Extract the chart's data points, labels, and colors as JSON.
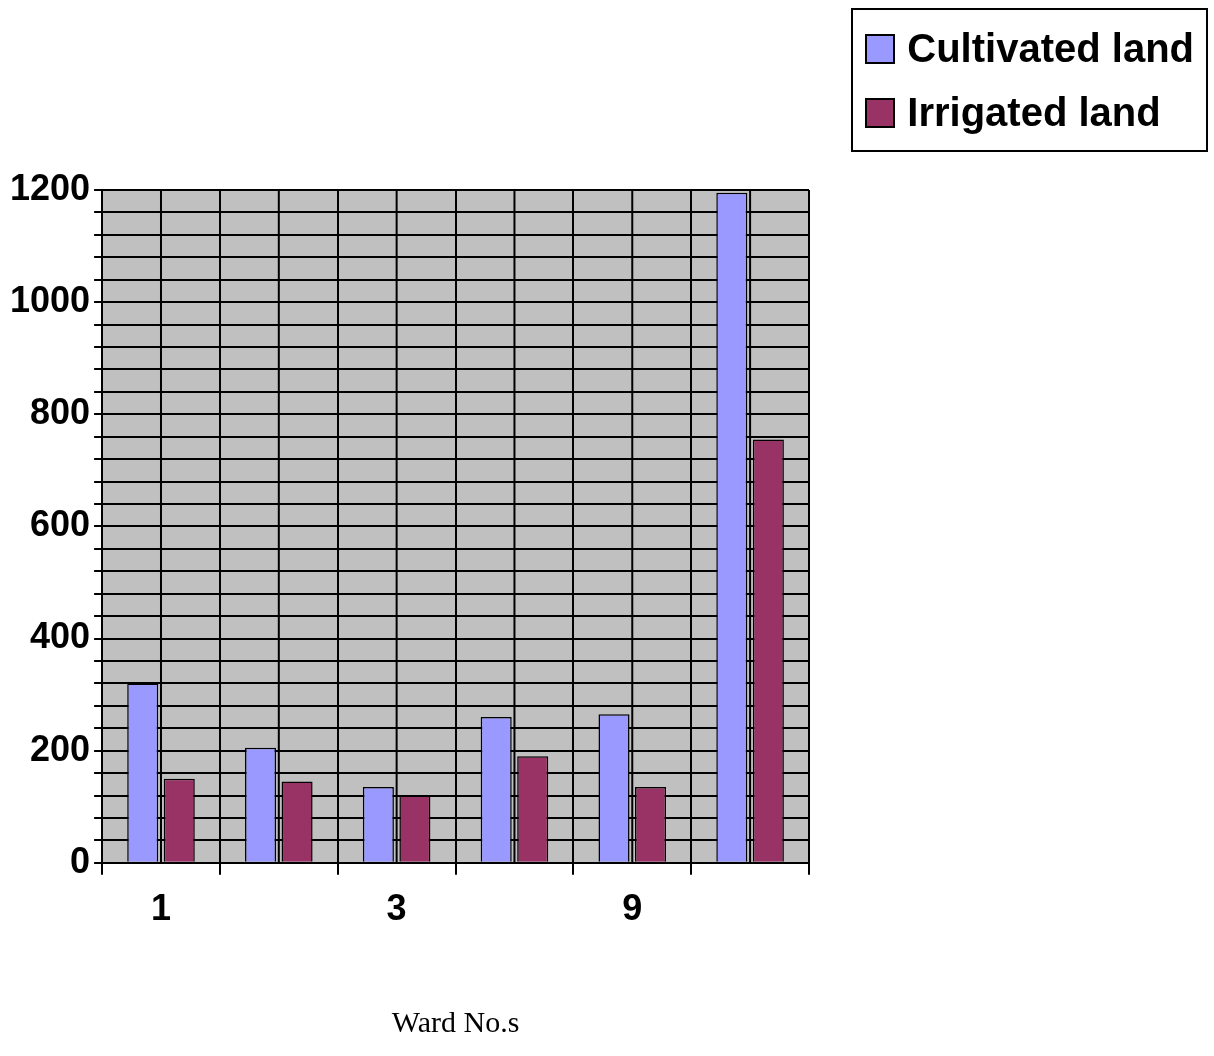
{
  "chart_data": {
    "type": "bar",
    "xlabel": "Ward No.s",
    "categories": [
      "1",
      null,
      "3",
      null,
      "9",
      null
    ],
    "series": [
      {
        "name": "Cultivated land",
        "color": "#9999ff",
        "values": [
          320,
          205,
          135,
          260,
          265,
          1195
        ]
      },
      {
        "name": "Irrigated land",
        "color": "#993366",
        "values": [
          150,
          145,
          120,
          190,
          135,
          755
        ]
      }
    ],
    "ylim": [
      0,
      1200
    ],
    "yticks": [
      0,
      {
        "value": 40,
        "label": null
      },
      {
        "value": 80,
        "label": null
      },
      {
        "value": 120,
        "label": null
      },
      {
        "value": 160,
        "label": null
      },
      200,
      {
        "value": 240,
        "label": null
      },
      {
        "value": 280,
        "label": null
      },
      {
        "value": 320,
        "label": null
      },
      {
        "value": 360,
        "label": null
      },
      400,
      {
        "value": 440,
        "label": null
      },
      {
        "value": 480,
        "label": null
      },
      {
        "value": 520,
        "label": null
      },
      {
        "value": 560,
        "label": null
      },
      600,
      {
        "value": 640,
        "label": null
      },
      {
        "value": 680,
        "label": null
      },
      {
        "value": 720,
        "label": null
      },
      {
        "value": 760,
        "label": null
      },
      800,
      {
        "value": 840,
        "label": null
      },
      {
        "value": 880,
        "label": null
      },
      {
        "value": 920,
        "label": null
      },
      {
        "value": 960,
        "label": null
      },
      1000,
      {
        "value": 1040,
        "label": null
      },
      {
        "value": 1080,
        "label": null
      },
      {
        "value": 1120,
        "label": null
      },
      {
        "value": 1160,
        "label": null
      },
      1200
    ],
    "grid": true,
    "legend": "top right"
  }
}
